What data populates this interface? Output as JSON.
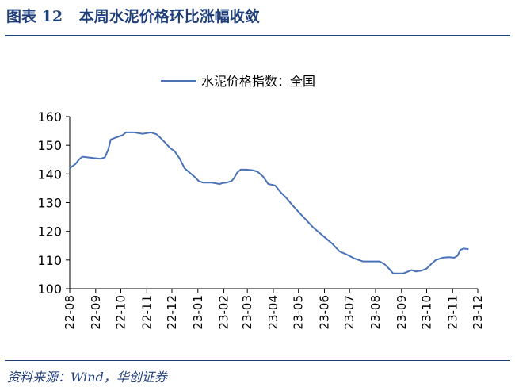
{
  "figure": {
    "label": "图表",
    "number": "12",
    "title": "本周水泥价格环比涨幅收敛",
    "source": "资料来源：Wind，华创证券"
  },
  "colors": {
    "title": "#1f3f7a",
    "line": "#4a72b8",
    "axis": "#000000"
  },
  "chart_data": {
    "type": "line",
    "legend": "top-center",
    "grid": false,
    "ylim": [
      100,
      160
    ],
    "yticks": [
      100,
      110,
      120,
      130,
      140,
      150,
      160
    ],
    "xlim": [
      "2022-08-01",
      "2023-12-01"
    ],
    "xticks": [
      {
        "label": "22-08",
        "date": "2022-08-01"
      },
      {
        "label": "22-09",
        "date": "2022-09-01"
      },
      {
        "label": "22-10",
        "date": "2022-10-01"
      },
      {
        "label": "22-11",
        "date": "2022-11-01"
      },
      {
        "label": "22-12",
        "date": "2022-12-01"
      },
      {
        "label": "23-01",
        "date": "2023-01-01"
      },
      {
        "label": "23-02",
        "date": "2023-02-01"
      },
      {
        "label": "23-03",
        "date": "2023-03-01"
      },
      {
        "label": "23-04",
        "date": "2023-04-01"
      },
      {
        "label": "23-05",
        "date": "2023-05-01"
      },
      {
        "label": "23-06",
        "date": "2023-06-01"
      },
      {
        "label": "23-07",
        "date": "2023-07-01"
      },
      {
        "label": "23-08",
        "date": "2023-08-01"
      },
      {
        "label": "23-09",
        "date": "2023-09-01"
      },
      {
        "label": "23-10",
        "date": "2023-10-01"
      },
      {
        "label": "23-11",
        "date": "2023-11-01"
      },
      {
        "label": "23-12",
        "date": "2023-12-01"
      }
    ],
    "series": [
      {
        "name": "水泥价格指数：全国",
        "points": [
          [
            "2022-08-01",
            142.0
          ],
          [
            "2022-08-08",
            143.5
          ],
          [
            "2022-08-12",
            145.0
          ],
          [
            "2022-08-16",
            146.0
          ],
          [
            "2022-08-22",
            145.8
          ],
          [
            "2022-08-30",
            145.5
          ],
          [
            "2022-09-07",
            145.3
          ],
          [
            "2022-09-12",
            145.8
          ],
          [
            "2022-09-16",
            148.5
          ],
          [
            "2022-09-19",
            152.0
          ],
          [
            "2022-09-26",
            152.8
          ],
          [
            "2022-10-03",
            153.5
          ],
          [
            "2022-10-07",
            154.5
          ],
          [
            "2022-10-17",
            154.5
          ],
          [
            "2022-10-27",
            154.0
          ],
          [
            "2022-11-06",
            154.5
          ],
          [
            "2022-11-13",
            153.8
          ],
          [
            "2022-11-21",
            151.5
          ],
          [
            "2022-11-29",
            149.0
          ],
          [
            "2022-12-04",
            148.0
          ],
          [
            "2022-12-10",
            145.5
          ],
          [
            "2022-12-16",
            142.0
          ],
          [
            "2022-12-22",
            140.5
          ],
          [
            "2022-12-30",
            138.5
          ],
          [
            "2023-01-02",
            137.5
          ],
          [
            "2023-01-07",
            137.0
          ],
          [
            "2023-01-17",
            137.0
          ],
          [
            "2023-01-27",
            136.5
          ],
          [
            "2023-01-30",
            136.8
          ],
          [
            "2023-02-04",
            137.0
          ],
          [
            "2023-02-10",
            137.5
          ],
          [
            "2023-02-13",
            138.5
          ],
          [
            "2023-02-17",
            140.5
          ],
          [
            "2023-02-21",
            141.5
          ],
          [
            "2023-02-27",
            141.5
          ],
          [
            "2023-03-07",
            141.3
          ],
          [
            "2023-03-13",
            140.8
          ],
          [
            "2023-03-20",
            139.0
          ],
          [
            "2023-03-26",
            136.5
          ],
          [
            "2023-04-03",
            136.0
          ],
          [
            "2023-04-10",
            133.5
          ],
          [
            "2023-04-17",
            131.5
          ],
          [
            "2023-04-24",
            129.0
          ],
          [
            "2023-05-02",
            126.5
          ],
          [
            "2023-05-10",
            124.0
          ],
          [
            "2023-05-18",
            121.5
          ],
          [
            "2023-05-26",
            119.5
          ],
          [
            "2023-06-03",
            117.5
          ],
          [
            "2023-06-11",
            115.5
          ],
          [
            "2023-06-19",
            113.0
          ],
          [
            "2023-06-27",
            112.0
          ],
          [
            "2023-07-07",
            110.5
          ],
          [
            "2023-07-17",
            109.5
          ],
          [
            "2023-07-27",
            109.5
          ],
          [
            "2023-08-06",
            109.5
          ],
          [
            "2023-08-12",
            108.5
          ],
          [
            "2023-08-17",
            107.0
          ],
          [
            "2023-08-22",
            105.3
          ],
          [
            "2023-09-03",
            105.3
          ],
          [
            "2023-09-09",
            106.0
          ],
          [
            "2023-09-13",
            106.5
          ],
          [
            "2023-09-18",
            106.0
          ],
          [
            "2023-09-25",
            106.3
          ],
          [
            "2023-10-01",
            107.0
          ],
          [
            "2023-10-06",
            108.5
          ],
          [
            "2023-10-12",
            110.0
          ],
          [
            "2023-10-20",
            110.8
          ],
          [
            "2023-10-27",
            111.0
          ],
          [
            "2023-11-03",
            110.8
          ],
          [
            "2023-11-07",
            111.5
          ],
          [
            "2023-11-10",
            113.5
          ],
          [
            "2023-11-14",
            114.0
          ],
          [
            "2023-11-20",
            113.8
          ]
        ]
      }
    ]
  }
}
